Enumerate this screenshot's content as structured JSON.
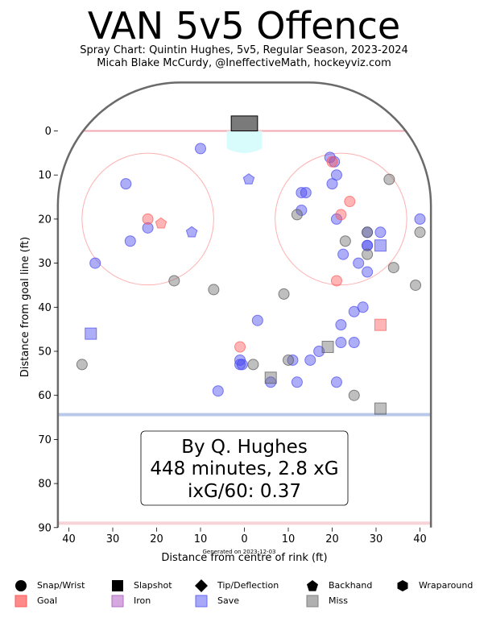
{
  "header": {
    "title": "VAN 5v5 Offence",
    "subtitle": "Spray Chart: Quintin Hughes, 5v5, Regular Season, 2023-2024",
    "credit": "Micah Blake McCurdy, @IneffectiveMath, hockeyviz.com"
  },
  "stats_box": {
    "line1": "By Q. Hughes",
    "line2": "448 minutes, 2.8 xG",
    "line3": "ixG/60: 0.37"
  },
  "generated_note": "Generated on 2023-12-03",
  "colors": {
    "save": "#4a4af0",
    "goal": "#ff5a5a",
    "miss": "#707070",
    "iron": "#b070c0",
    "rink_line": "#6a6a6a",
    "goal_line": "#f2a8b0",
    "blue_line": "#9cb0e0",
    "crease": "#d8fbfb"
  },
  "legend": {
    "shot_types": [
      {
        "label": "Snap/Wrist",
        "icon": "circle-icon"
      },
      {
        "label": "Slapshot",
        "icon": "square-icon"
      },
      {
        "label": "Tip/Deflection",
        "icon": "diamond-icon"
      },
      {
        "label": "Backhand",
        "icon": "pentagon-icon"
      },
      {
        "label": "Wraparound",
        "icon": "hexagon-icon"
      }
    ],
    "outcomes": [
      {
        "label": "Goal",
        "color": "#ff8a8a",
        "icon": "square-icon"
      },
      {
        "label": "Iron",
        "color": "#c890d4",
        "icon": "square-icon"
      },
      {
        "label": "Save",
        "color": "#8a8af6",
        "icon": "square-icon"
      },
      {
        "label": "Miss",
        "color": "#9a9a9a",
        "icon": "square-icon"
      }
    ]
  },
  "chart_data": {
    "type": "scatter",
    "xlabel": "Distance from centre of rink (ft)",
    "ylabel": "Distance from goal line (ft)",
    "xlim": [
      42.5,
      -42.5
    ],
    "ylim": [
      90,
      -11
    ],
    "x_ticks": [
      40,
      30,
      20,
      10,
      0,
      10,
      20,
      30,
      40
    ],
    "y_ticks": [
      0,
      10,
      20,
      30,
      40,
      50,
      60,
      70,
      80,
      90
    ],
    "grid": false,
    "series": [
      {
        "name": "Save",
        "points": [
          [
            -19.5,
            6
          ],
          [
            -20.5,
            7
          ],
          [
            -21,
            10
          ],
          [
            -20,
            12
          ],
          [
            -14,
            14
          ],
          [
            -13,
            14
          ],
          [
            -13,
            18
          ],
          [
            -21,
            20
          ],
          [
            -40,
            20
          ],
          [
            -31,
            23
          ],
          [
            -28,
            23
          ],
          [
            -28,
            26
          ],
          [
            -28,
            26
          ],
          [
            -22.5,
            28
          ],
          [
            -26,
            30
          ],
          [
            -28,
            32
          ],
          [
            -27,
            40
          ],
          [
            -25,
            41
          ],
          [
            -22,
            44
          ],
          [
            -25,
            48
          ],
          [
            -22,
            48
          ],
          [
            -17,
            50
          ],
          [
            -15,
            52
          ],
          [
            -11,
            52
          ],
          [
            -12,
            57
          ],
          [
            -21,
            57
          ],
          [
            -3,
            43
          ],
          [
            0.5,
            53
          ],
          [
            1,
            53
          ],
          [
            1,
            52
          ],
          [
            6,
            59
          ],
          [
            -6,
            57
          ],
          [
            10,
            4
          ],
          [
            27,
            12
          ],
          [
            22,
            22
          ],
          [
            26,
            25
          ],
          [
            34,
            30
          ]
        ]
      },
      {
        "name": "Goal",
        "points": [
          [
            -20,
            7
          ],
          [
            -24,
            16
          ],
          [
            -22,
            19
          ],
          [
            -21,
            34
          ],
          [
            1,
            49
          ],
          [
            22,
            20
          ]
        ]
      },
      {
        "name": "Miss",
        "points": [
          [
            -33,
            11
          ],
          [
            -40,
            23
          ],
          [
            -28,
            23
          ],
          [
            -23,
            25
          ],
          [
            -34,
            31
          ],
          [
            -28,
            28
          ],
          [
            -39,
            35
          ],
          [
            -12,
            19
          ],
          [
            -9,
            37
          ],
          [
            -10,
            52
          ],
          [
            -2,
            53
          ],
          [
            7,
            36
          ],
          [
            16,
            34
          ],
          [
            -25,
            60
          ],
          [
            37,
            53
          ]
        ]
      },
      {
        "name": "Save (Slapshot)",
        "points": [
          [
            -31,
            26
          ],
          [
            35,
            46
          ]
        ]
      },
      {
        "name": "Goal (Slapshot)",
        "points": [
          [
            -31,
            44
          ]
        ]
      },
      {
        "name": "Miss (Slapshot)",
        "points": [
          [
            -19,
            49
          ],
          [
            -6,
            56
          ],
          [
            -31,
            63
          ]
        ]
      },
      {
        "name": "Save (Backhand)",
        "points": [
          [
            -1,
            11
          ],
          [
            12,
            23
          ]
        ]
      },
      {
        "name": "Goal (Backhand)",
        "points": [
          [
            19,
            21
          ]
        ]
      }
    ]
  }
}
